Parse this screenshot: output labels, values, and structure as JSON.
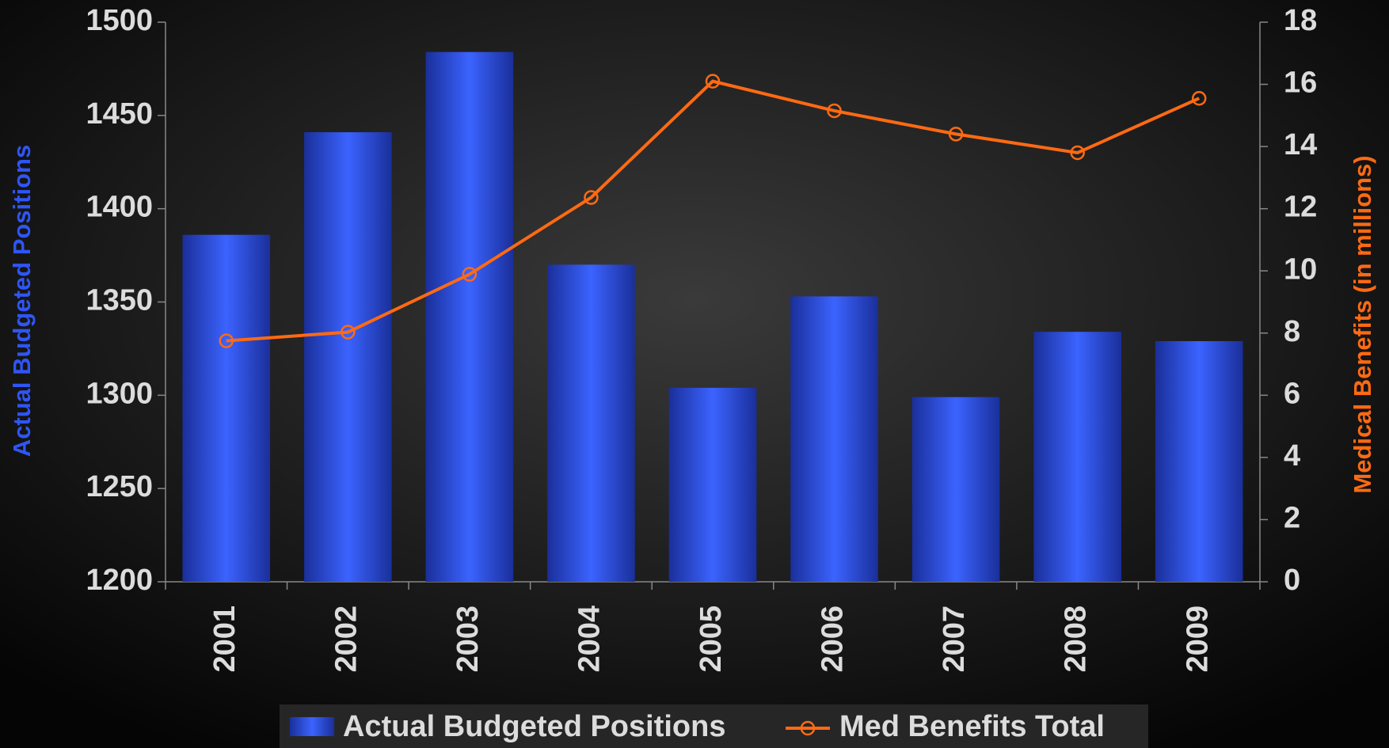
{
  "chart_data": {
    "type": "bar",
    "categories": [
      "2001",
      "2002",
      "2003",
      "2004",
      "2005",
      "2006",
      "2007",
      "2008",
      "2009"
    ],
    "series": [
      {
        "name": "Actual Budgeted Positions",
        "color": "#2f55f5",
        "values": [
          1386,
          1441,
          1484,
          1370,
          1304,
          1353,
          1299,
          1334,
          1329
        ]
      },
      {
        "name": "Med Benefits Total",
        "color": "#ff6a13",
        "type": "line",
        "axis": "y2",
        "values": [
          7.75,
          8.03,
          9.89,
          12.36,
          16.1,
          15.15,
          14.4,
          13.8,
          15.55
        ]
      }
    ],
    "ylabel": "Actual Budgeted Positions",
    "y2label": "Medical Benefits (in millions)",
    "ylim": [
      1200,
      1500
    ],
    "yticks": [
      1200,
      1250,
      1300,
      1350,
      1400,
      1450,
      1500
    ],
    "y2lim": [
      0,
      18
    ],
    "y2ticks": [
      0,
      2,
      4,
      6,
      8,
      10,
      12,
      14,
      16,
      18
    ],
    "grid": false,
    "legend": "bottom"
  }
}
